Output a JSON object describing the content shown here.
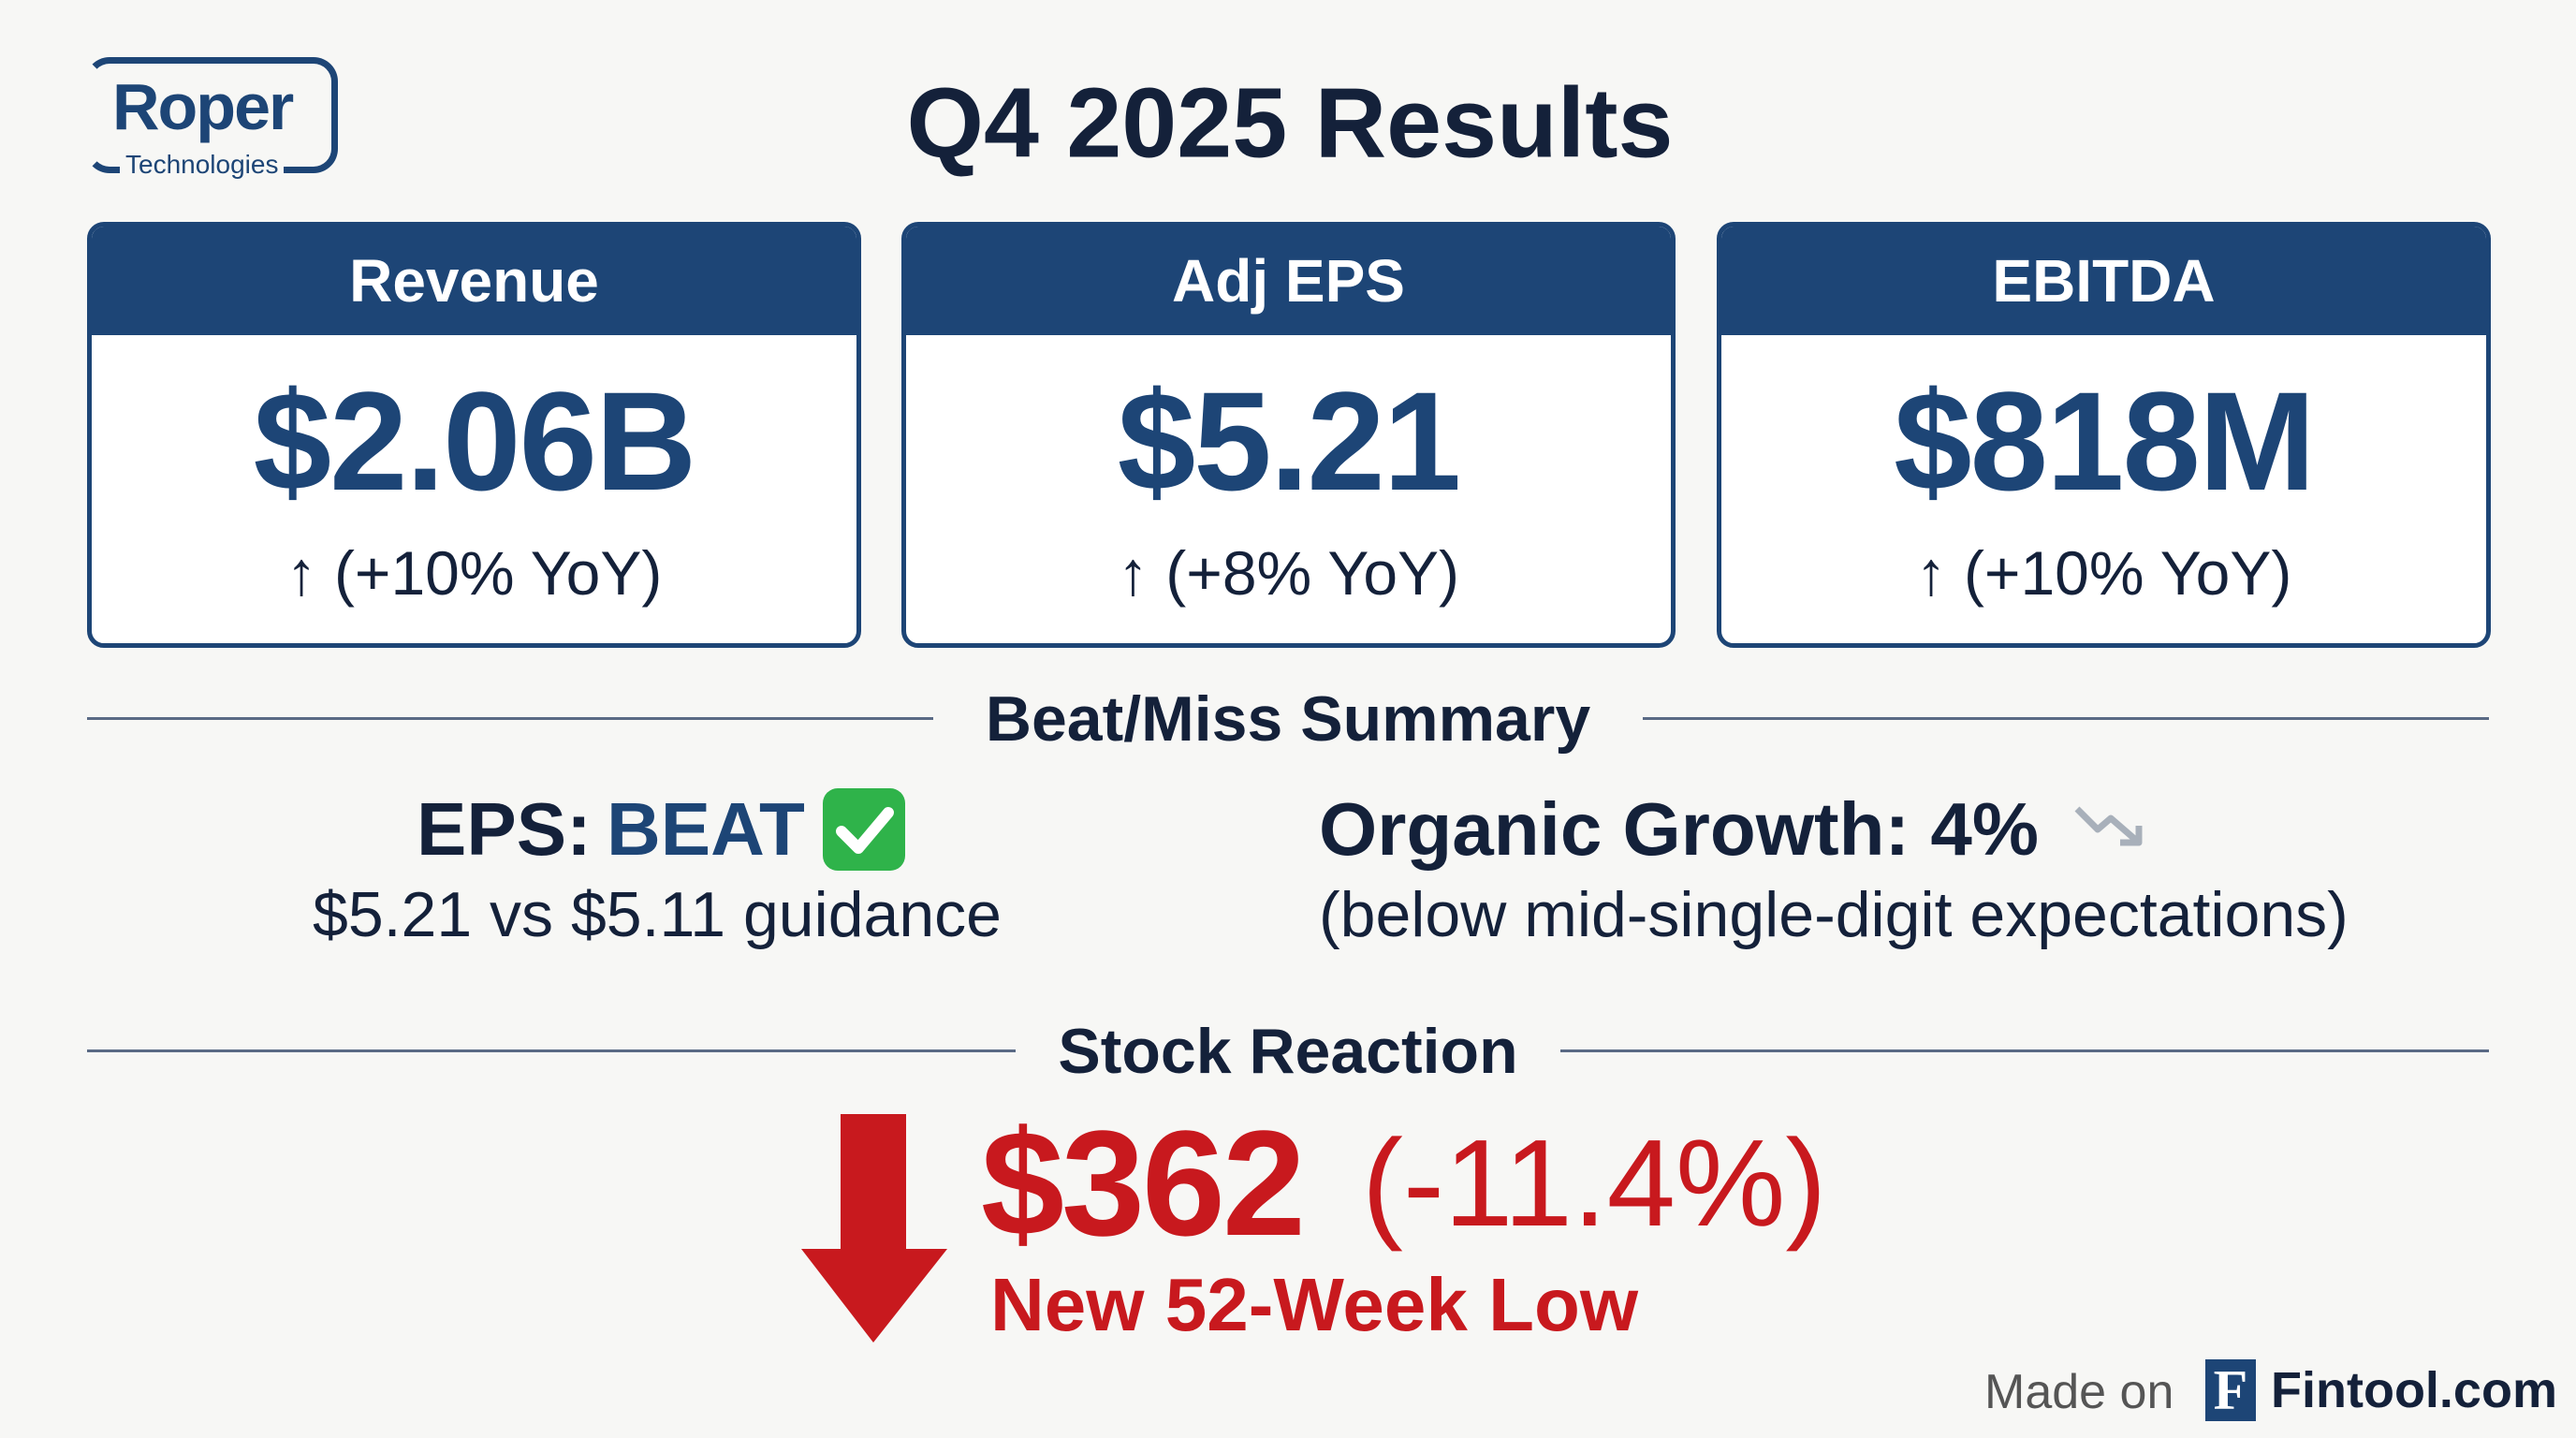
{
  "logo": {
    "name": "Roper",
    "sub": "Technologies"
  },
  "header": {
    "title": "Q4 2025 Results"
  },
  "metrics": [
    {
      "label": "Revenue",
      "value": "$2.06B",
      "change": "↑ (+10% YoY)"
    },
    {
      "label": "Adj EPS",
      "value": "$5.21",
      "change": "↑ (+8% YoY)"
    },
    {
      "label": "EBITDA",
      "value": "$818M",
      "change": "↑ (+10% YoY)"
    }
  ],
  "beat_miss": {
    "title": "Beat/Miss Summary",
    "eps": {
      "label": "EPS:",
      "status": "BEAT",
      "detail": "$5.21 vs $5.11 guidance"
    },
    "organic": {
      "label": "Organic Growth: 4%",
      "detail": "(below mid-single-digit expectations)"
    }
  },
  "stock": {
    "title": "Stock Reaction",
    "price": "$362",
    "change": "(-11.4%)",
    "note": "New 52-Week Low"
  },
  "footer": {
    "made_on": "Made on",
    "logo_letter": "F",
    "brand": "Fintool.com"
  }
}
